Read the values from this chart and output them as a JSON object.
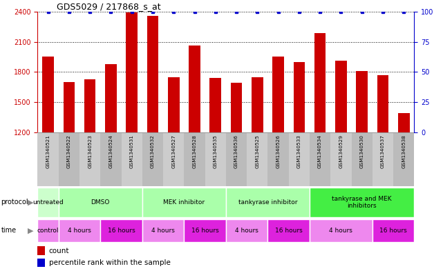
{
  "title": "GDS5029 / 217868_s_at",
  "samples": [
    "GSM1340521",
    "GSM1340522",
    "GSM1340523",
    "GSM1340524",
    "GSM1340531",
    "GSM1340532",
    "GSM1340527",
    "GSM1340528",
    "GSM1340535",
    "GSM1340536",
    "GSM1340525",
    "GSM1340526",
    "GSM1340533",
    "GSM1340534",
    "GSM1340529",
    "GSM1340530",
    "GSM1340537",
    "GSM1340538"
  ],
  "counts": [
    1950,
    1700,
    1730,
    1880,
    2390,
    2360,
    1750,
    2060,
    1740,
    1690,
    1750,
    1950,
    1900,
    2190,
    1910,
    1810,
    1770,
    1390
  ],
  "percentile_ranks": [
    100,
    100,
    100,
    100,
    100,
    100,
    100,
    100,
    100,
    100,
    100,
    100,
    100,
    100,
    100,
    100,
    100,
    100
  ],
  "ylim_left": [
    1200,
    2400
  ],
  "ylim_right": [
    0,
    100
  ],
  "yticks_left": [
    1200,
    1500,
    1800,
    2100,
    2400
  ],
  "yticks_right": [
    0,
    25,
    50,
    75,
    100
  ],
  "bar_color": "#cc0000",
  "dot_color": "#0000cc",
  "proto_groups": [
    {
      "label": "untreated",
      "start": 0,
      "end": 1,
      "color": "#ccffcc"
    },
    {
      "label": "DMSO",
      "start": 1,
      "end": 5,
      "color": "#aaffaa"
    },
    {
      "label": "MEK inhibitor",
      "start": 5,
      "end": 9,
      "color": "#aaffaa"
    },
    {
      "label": "tankyrase inhibitor",
      "start": 9,
      "end": 13,
      "color": "#aaffaa"
    },
    {
      "label": "tankyrase and MEK\ninhibitors",
      "start": 13,
      "end": 18,
      "color": "#44ee44"
    }
  ],
  "time_groups": [
    {
      "label": "control",
      "start": 0,
      "end": 1,
      "color": "#ee88ee"
    },
    {
      "label": "4 hours",
      "start": 1,
      "end": 3,
      "color": "#ee88ee"
    },
    {
      "label": "16 hours",
      "start": 3,
      "end": 5,
      "color": "#dd22dd"
    },
    {
      "label": "4 hours",
      "start": 5,
      "end": 7,
      "color": "#ee88ee"
    },
    {
      "label": "16 hours",
      "start": 7,
      "end": 9,
      "color": "#dd22dd"
    },
    {
      "label": "4 hours",
      "start": 9,
      "end": 11,
      "color": "#ee88ee"
    },
    {
      "label": "16 hours",
      "start": 11,
      "end": 13,
      "color": "#dd22dd"
    },
    {
      "label": "4 hours",
      "start": 13,
      "end": 16,
      "color": "#ee88ee"
    },
    {
      "label": "16 hours",
      "start": 16,
      "end": 18,
      "color": "#dd22dd"
    }
  ],
  "label_colors": [
    "#cccccc",
    "#bbbbbb"
  ],
  "background_color": "#ffffff",
  "left_axis_color": "#cc0000",
  "right_axis_color": "#0000cc"
}
